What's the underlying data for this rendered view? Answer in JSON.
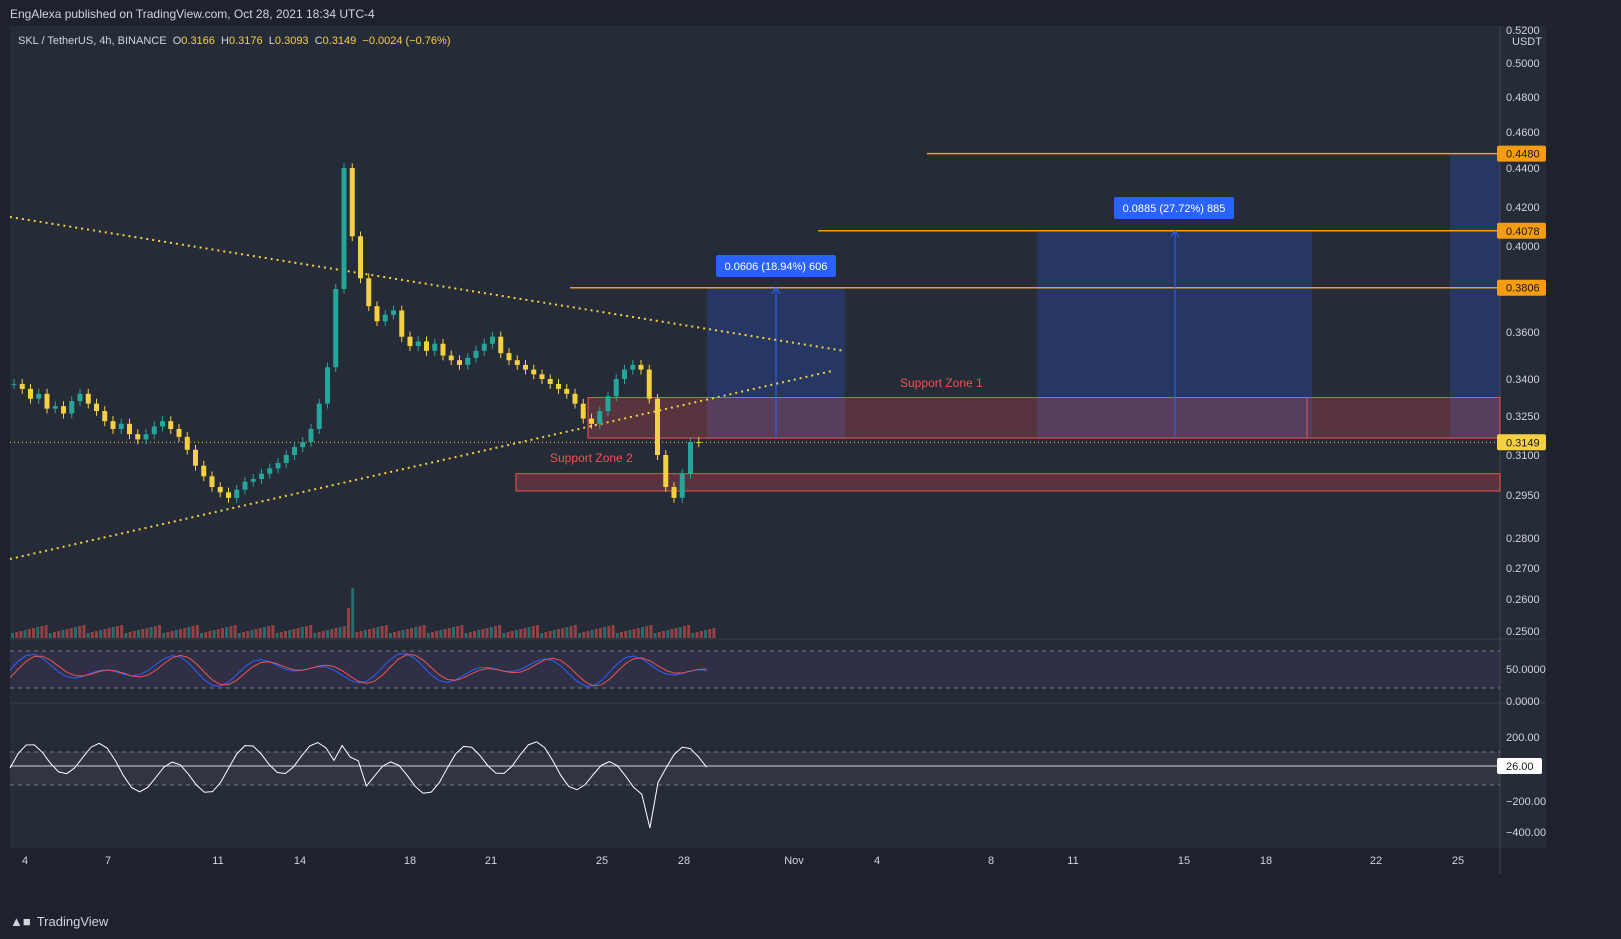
{
  "publisher": "EngAlexa published on TradingView.com, Oct 28, 2021 18:34 UTC-4",
  "header": {
    "symbol": "SKL / TetherUS, 4h, BINANCE",
    "o_label": "O",
    "o_val": "0.3166",
    "h_label": "H",
    "h_val": "0.3176",
    "l_label": "L",
    "l_val": "0.3093",
    "c_label": "C",
    "c_val": "0.3149",
    "change": "−0.0024 (−0.76%)"
  },
  "brand": "TradingView",
  "colors": {
    "up": "#26a69a",
    "down": "#ef5350",
    "candle": "#f5d142",
    "level": "#f59d11",
    "zone": "#ef5350",
    "target": "#2962ff"
  },
  "chart_data": {
    "type": "candlestick",
    "currency": "USDT",
    "y_ticks": [
      "0.5200",
      "0.5000",
      "0.4800",
      "0.4600",
      "0.4400",
      "0.4200",
      "0.4000",
      "0.3600",
      "0.3400",
      "0.3250",
      "0.3100",
      "0.2950",
      "0.2800",
      "0.2700",
      "0.2600",
      "0.2500"
    ],
    "x_ticks": [
      "4",
      "7",
      "11",
      "14",
      "18",
      "21",
      "25",
      "28",
      "Nov",
      "4",
      "8",
      "11",
      "15",
      "18",
      "22",
      "25"
    ],
    "price_labels": [
      "0.4480",
      "0.4078",
      "0.3806",
      "0.3149"
    ],
    "target_levels": [
      0.448,
      0.4078,
      0.3806
    ],
    "last_price": 0.3149,
    "zones": [
      {
        "name": "Support Zone 1",
        "from": 0.3165,
        "to": 0.3325
      },
      {
        "name": "Support Zone 2",
        "from": 0.2965,
        "to": 0.303
      }
    ],
    "measures": [
      {
        "label": "0.0606 (18.94%) 606"
      },
      {
        "label": "0.0885 (27.72%) 885"
      }
    ],
    "oscillator1": {
      "ticks": [
        "50.0000",
        "0.0000"
      ]
    },
    "oscillator2": {
      "ticks": [
        "200.00",
        "−200.00",
        "−400.00"
      ],
      "current": "26.00"
    }
  }
}
